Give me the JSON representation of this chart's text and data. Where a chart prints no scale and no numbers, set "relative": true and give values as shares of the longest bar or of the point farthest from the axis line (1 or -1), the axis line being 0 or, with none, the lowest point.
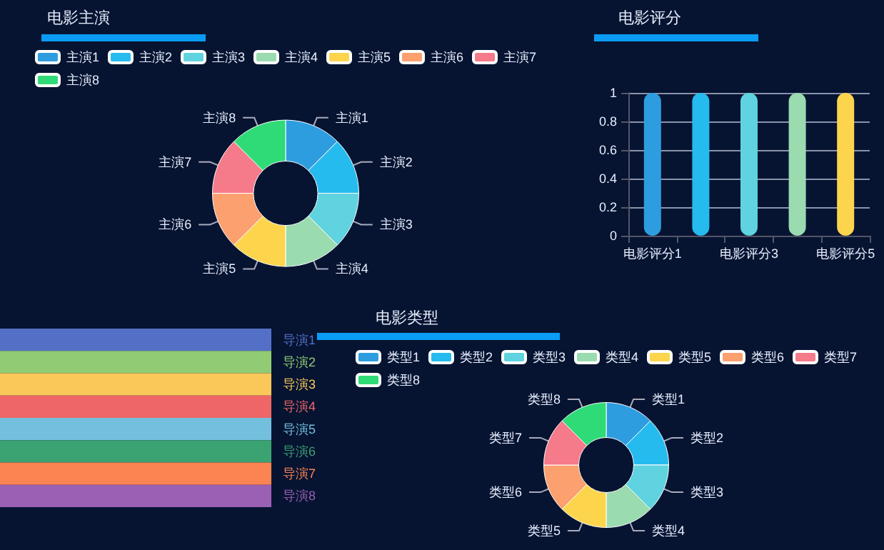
{
  "chart_data": [
    {
      "type": "donut",
      "title": "电影主演",
      "legend": "top",
      "categories": [
        "主演1",
        "主演2",
        "主演3",
        "主演4",
        "主演5",
        "主演6",
        "主演7",
        "主演8"
      ],
      "values": [
        12.5,
        12.5,
        12.5,
        12.5,
        12.5,
        12.5,
        12.5,
        12.5
      ],
      "colors": [
        "#2e9de0",
        "#25bbee",
        "#5fd3df",
        "#9adbb0",
        "#fdd54d",
        "#fba06e",
        "#f57a8a",
        "#2fdb77"
      ]
    },
    {
      "type": "bar",
      "title": "电影评分",
      "categories": [
        "电影评分1",
        null,
        "电影评分3",
        null,
        "电影评分5"
      ],
      "values": [
        1,
        1,
        1,
        1,
        1
      ],
      "colors": [
        "#2e9de0",
        "#25bbee",
        "#5fd3df",
        "#9adbb0",
        "#fdd54d"
      ],
      "ylim": [
        0,
        1
      ],
      "yticks": [
        0,
        0.2,
        0.4,
        0.6,
        0.8,
        1
      ],
      "grid": "y"
    },
    {
      "type": "bar",
      "orientation": "horizontal",
      "relative": true,
      "categories": [
        "导演1",
        "导演2",
        "导演3",
        "导演4",
        "导演5",
        "导演6",
        "导演7",
        "导演8"
      ],
      "values": [
        1,
        1,
        1,
        1,
        1,
        1,
        1,
        1
      ],
      "colors": [
        "#5470c6",
        "#91cc75",
        "#fac858",
        "#ee6666",
        "#73c0de",
        "#3ba272",
        "#fc8452",
        "#9a60b4"
      ]
    },
    {
      "type": "donut",
      "title": "电影类型",
      "legend": "top",
      "categories": [
        "类型1",
        "类型2",
        "类型3",
        "类型4",
        "类型5",
        "类型6",
        "类型7",
        "类型8"
      ],
      "values": [
        12.5,
        12.5,
        12.5,
        12.5,
        12.5,
        12.5,
        12.5,
        12.5
      ],
      "colors": [
        "#2e9de0",
        "#25bbee",
        "#5fd3df",
        "#9adbb0",
        "#fdd54d",
        "#fba06e",
        "#f57a8a",
        "#2fdb77"
      ]
    }
  ]
}
